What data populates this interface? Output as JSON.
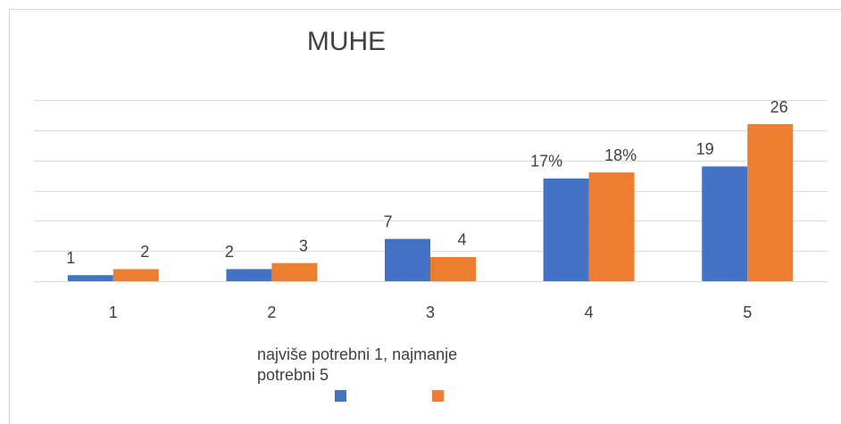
{
  "chart_data": {
    "type": "bar",
    "title": "MUHE",
    "categories": [
      "1",
      "2",
      "3",
      "4",
      "5"
    ],
    "series": [
      {
        "color": "#4472c4",
        "values": [
          1,
          2,
          7,
          17,
          19
        ],
        "value_labels": [
          "1",
          "2",
          "7",
          "17%",
          "19"
        ]
      },
      {
        "color": "#ed7d31",
        "values": [
          2,
          3,
          4,
          18,
          26
        ],
        "value_labels": [
          "2",
          "3",
          "4",
          "18%",
          "26"
        ]
      }
    ],
    "x_label": [
      "najviše potrebni 1, najmanje",
      "potrebni 5"
    ],
    "ylim": [
      0,
      30
    ],
    "yticks": [
      0,
      5,
      10,
      15,
      20,
      25,
      30
    ],
    "grid": true
  }
}
